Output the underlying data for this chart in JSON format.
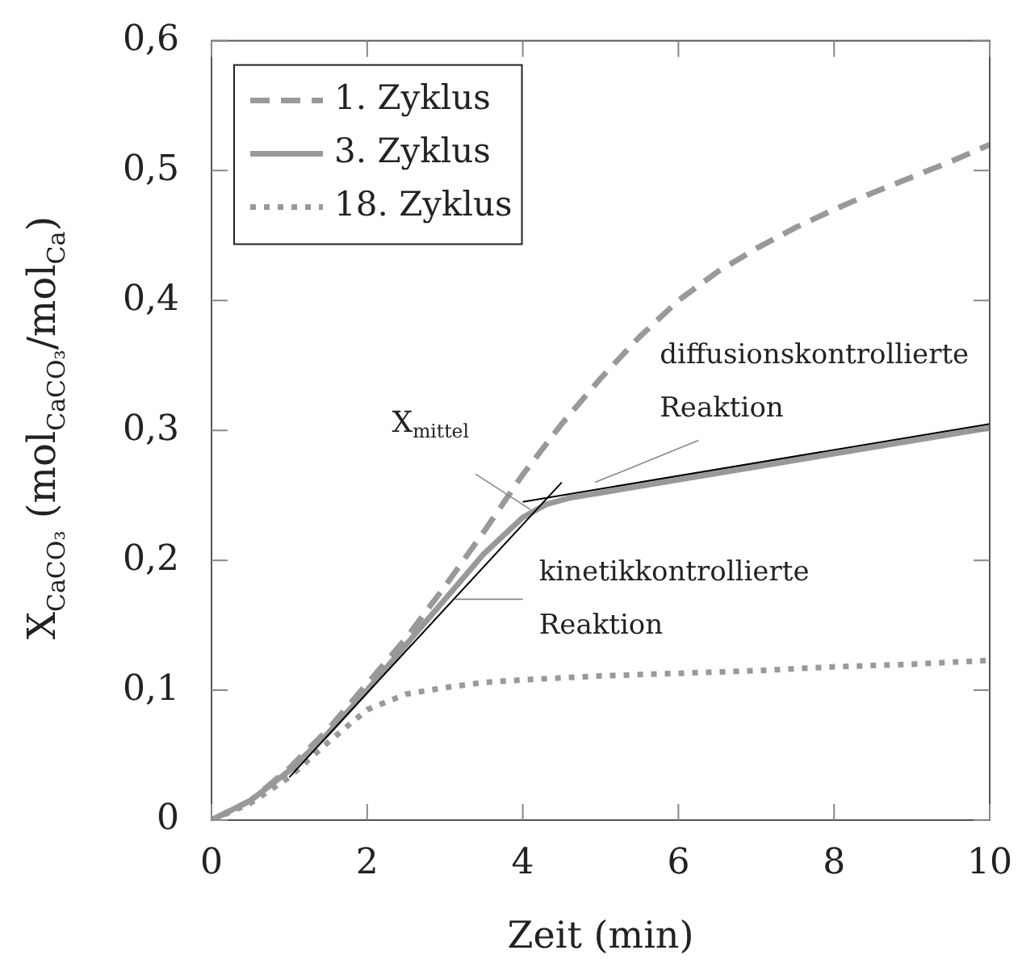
{
  "chart_data": {
    "type": "line",
    "xlabel": "Zeit (min)",
    "ylabel": "X$_{CaCO₃}$ (mol$_{CaCO₃}$/mol$_{Ca}$)",
    "xlim": [
      0,
      10
    ],
    "xticks": [
      0,
      2,
      4,
      6,
      8,
      10
    ],
    "ylim": [
      0,
      0.6
    ],
    "yticks": [
      0,
      {
        "value": 0.1,
        "label": "0,1"
      },
      {
        "value": 0.2,
        "label": "0,2"
      },
      {
        "value": 0.3,
        "label": "0,3"
      },
      {
        "value": 0.4,
        "label": "0,4"
      },
      {
        "value": 0.5,
        "label": "0,5"
      },
      {
        "value": 0.6,
        "label": "0,6"
      }
    ],
    "grid": false,
    "legend": "top left",
    "marker": "none",
    "series": [
      {
        "name": "1. Zyklus",
        "color": "#999999",
        "line_style": "dashed",
        "x": [
          0,
          0.5,
          1,
          1.5,
          2,
          2.5,
          3,
          3.5,
          4,
          4.5,
          5,
          5.5,
          6,
          6.5,
          7,
          7.5,
          8,
          8.5,
          9,
          9.5,
          10
        ],
        "values": [
          0,
          0.015,
          0.04,
          0.07,
          0.105,
          0.14,
          0.18,
          0.222,
          0.266,
          0.305,
          0.34,
          0.372,
          0.4,
          0.422,
          0.44,
          0.456,
          0.47,
          0.483,
          0.495,
          0.507,
          0.52
        ]
      },
      {
        "name": "3. Zyklus",
        "color": "#999999",
        "line_style": "solid",
        "x": [
          0,
          0.5,
          1,
          1.5,
          2,
          2.5,
          3,
          3.5,
          4,
          4.3,
          4.6,
          5,
          6,
          7,
          8,
          9,
          10
        ],
        "values": [
          0,
          0.015,
          0.038,
          0.067,
          0.1,
          0.135,
          0.17,
          0.205,
          0.233,
          0.243,
          0.248,
          0.252,
          0.262,
          0.272,
          0.282,
          0.292,
          0.302
        ]
      },
      {
        "name": "18. Zyklus",
        "color": "#999999",
        "line_style": "dotted",
        "x": [
          0,
          0.5,
          1,
          1.5,
          2,
          2.5,
          3,
          3.5,
          4,
          5,
          6,
          7,
          8,
          9,
          10
        ],
        "values": [
          0,
          0.013,
          0.033,
          0.06,
          0.085,
          0.097,
          0.102,
          0.106,
          0.108,
          0.111,
          0.113,
          0.115,
          0.118,
          0.12,
          0.123
        ]
      },
      {
        "color": "#000000",
        "line_style": "solid",
        "x": [
          1,
          4.5
        ],
        "values": [
          0.033,
          0.26
        ]
      },
      {
        "color": "#000000",
        "line_style": "solid",
        "x": [
          4,
          10
        ],
        "values": [
          0.245,
          0.305
        ]
      }
    ],
    "annotations": [
      {
        "text": "X$_{mittel}$",
        "x": 4.1,
        "y": 0.239
      },
      {
        "text": "diffusionskontrollierte Reaktion",
        "x": 4.93,
        "y": 0.26
      },
      {
        "text": "kinetikkontrollierte Reaktion",
        "x": 3.13,
        "y": 0.17
      }
    ]
  }
}
